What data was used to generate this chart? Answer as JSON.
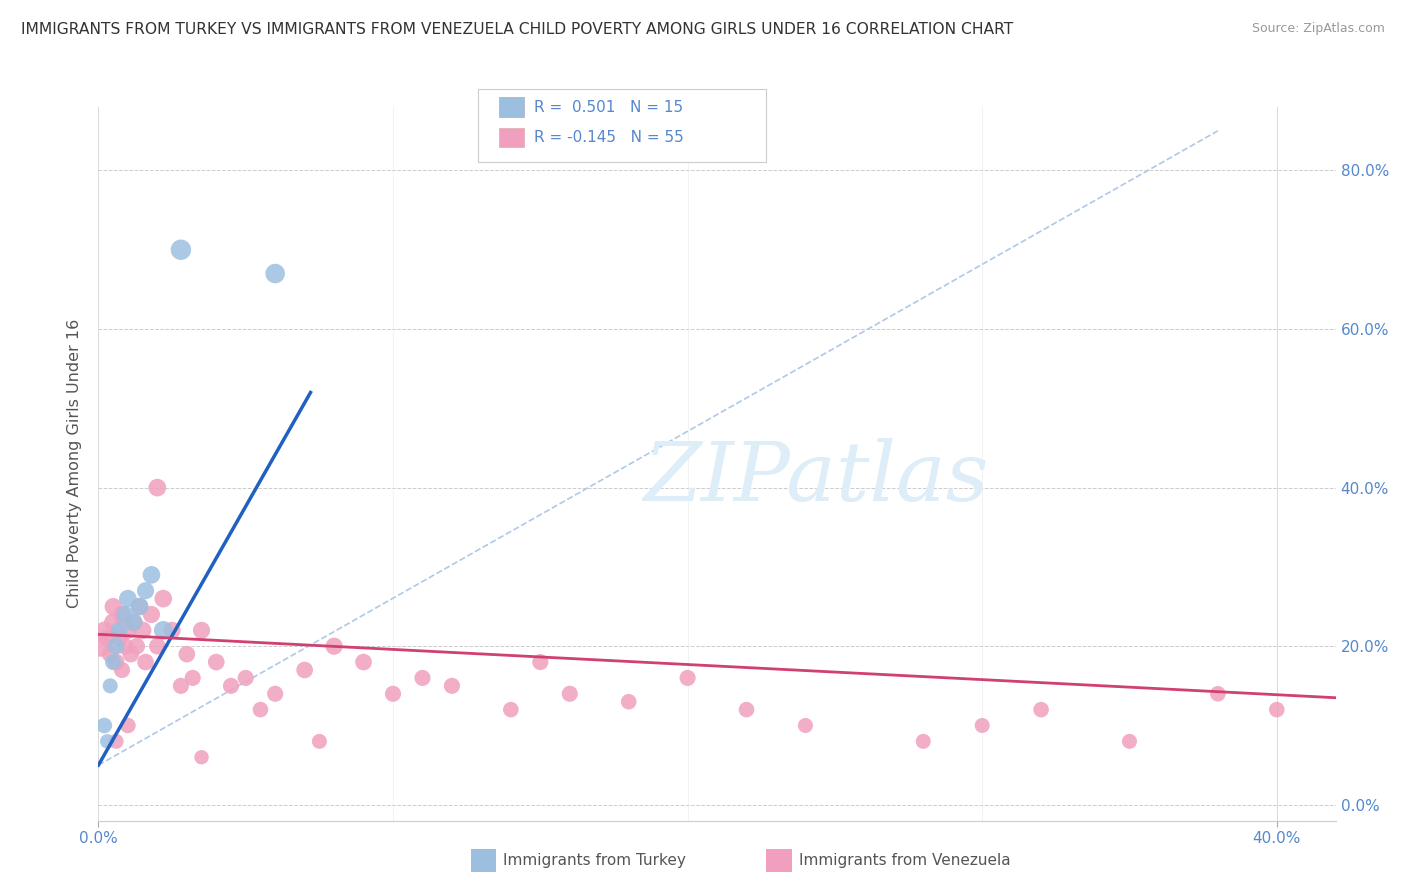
{
  "title": "IMMIGRANTS FROM TURKEY VS IMMIGRANTS FROM VENEZUELA CHILD POVERTY AMONG GIRLS UNDER 16 CORRELATION CHART",
  "source": "Source: ZipAtlas.com",
  "ylabel": "Child Poverty Among Girls Under 16",
  "xlim": [
    0.0,
    0.42
  ],
  "ylim": [
    -0.02,
    0.88
  ],
  "ytick_positions": [
    0.0,
    0.2,
    0.4,
    0.6,
    0.8
  ],
  "right_ytick_labels": [
    "0.0%",
    "20.0%",
    "40.0%",
    "60.0%",
    "80.0%"
  ],
  "xtick_positions": [
    0.0,
    0.4
  ],
  "xtick_labels": [
    "0.0%",
    "40.0%"
  ],
  "legend_R_turkey": "0.501",
  "legend_N_turkey": "15",
  "legend_R_venezuela": "-0.145",
  "legend_N_venezuela": "55",
  "turkey_color": "#9cbfe0",
  "venezuela_color": "#f0a0be",
  "turkey_line_color": "#2060c0",
  "venezuela_line_color": "#d04070",
  "dashed_color": "#b0c8e8",
  "watermark_text": "ZIPatlas",
  "watermark_color": "#ddeef8",
  "turkey_x": [
    0.002,
    0.003,
    0.004,
    0.005,
    0.006,
    0.007,
    0.009,
    0.01,
    0.012,
    0.014,
    0.016,
    0.018,
    0.022,
    0.028,
    0.06
  ],
  "turkey_y": [
    0.1,
    0.08,
    0.15,
    0.18,
    0.2,
    0.22,
    0.24,
    0.26,
    0.23,
    0.25,
    0.27,
    0.29,
    0.22,
    0.7,
    0.67
  ],
  "turkey_sizes": [
    70,
    60,
    65,
    75,
    80,
    80,
    85,
    90,
    85,
    90,
    85,
    90,
    100,
    120,
    110
  ],
  "venezuela_x": [
    0.001,
    0.002,
    0.003,
    0.004,
    0.005,
    0.005,
    0.006,
    0.007,
    0.008,
    0.008,
    0.009,
    0.01,
    0.011,
    0.012,
    0.013,
    0.014,
    0.015,
    0.016,
    0.018,
    0.02,
    0.022,
    0.025,
    0.028,
    0.03,
    0.032,
    0.035,
    0.04,
    0.045,
    0.05,
    0.055,
    0.06,
    0.07,
    0.08,
    0.09,
    0.1,
    0.11,
    0.12,
    0.14,
    0.16,
    0.18,
    0.2,
    0.22,
    0.24,
    0.28,
    0.3,
    0.32,
    0.35,
    0.38,
    0.4,
    0.15,
    0.075,
    0.035,
    0.02,
    0.01,
    0.006
  ],
  "venezuela_y": [
    0.2,
    0.22,
    0.21,
    0.19,
    0.23,
    0.25,
    0.18,
    0.21,
    0.17,
    0.24,
    0.2,
    0.22,
    0.19,
    0.23,
    0.2,
    0.25,
    0.22,
    0.18,
    0.24,
    0.2,
    0.26,
    0.22,
    0.15,
    0.19,
    0.16,
    0.22,
    0.18,
    0.15,
    0.16,
    0.12,
    0.14,
    0.17,
    0.2,
    0.18,
    0.14,
    0.16,
    0.15,
    0.12,
    0.14,
    0.13,
    0.16,
    0.12,
    0.1,
    0.08,
    0.1,
    0.12,
    0.08,
    0.14,
    0.12,
    0.18,
    0.08,
    0.06,
    0.4,
    0.1,
    0.08
  ],
  "venezuela_sizes": [
    130,
    90,
    85,
    80,
    95,
    85,
    80,
    85,
    75,
    90,
    80,
    85,
    80,
    90,
    80,
    85,
    90,
    80,
    85,
    80,
    90,
    85,
    75,
    80,
    75,
    85,
    80,
    75,
    75,
    70,
    75,
    80,
    85,
    80,
    75,
    75,
    75,
    70,
    75,
    70,
    75,
    70,
    65,
    65,
    65,
    70,
    65,
    70,
    70,
    75,
    65,
    60,
    90,
    70,
    65
  ],
  "turkey_line_x": [
    0.0,
    0.072
  ],
  "turkey_line_y": [
    0.05,
    0.52
  ],
  "dashed_line_x": [
    0.0,
    0.38
  ],
  "dashed_line_y": [
    0.05,
    0.85
  ],
  "venezuela_line_x": [
    0.0,
    0.42
  ],
  "venezuela_line_y": [
    0.215,
    0.135
  ],
  "background_color": "#ffffff",
  "grid_color": "#cccccc",
  "title_color": "#333333",
  "axis_label_color": "#5588cc"
}
